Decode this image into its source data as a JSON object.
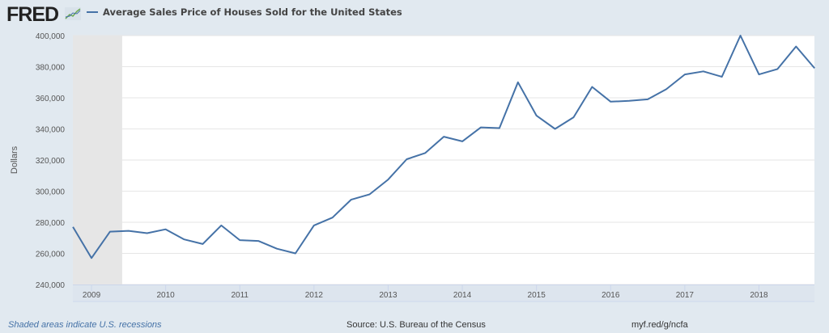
{
  "header": {
    "logo": "FRED",
    "logo_icon": "line-chart-icon"
  },
  "footer": {
    "recession_note": "Shaded areas indicate U.S. recessions",
    "source": "Source: U.S. Bureau of the Census",
    "link": "myf.red/g/ncfa"
  },
  "chart_data": {
    "type": "line",
    "title": "",
    "legend": [
      "Average Sales Price of Houses Sold for the United States"
    ],
    "legend_placement": "top-left",
    "xlabel": "",
    "ylabel": "Dollars",
    "ylim": [
      240000,
      400000
    ],
    "yticks": [
      "240,000",
      "260,000",
      "280,000",
      "300,000",
      "320,000",
      "340,000",
      "360,000",
      "380,000",
      "400,000"
    ],
    "ytick_values": [
      240000,
      260000,
      280000,
      300000,
      320000,
      340000,
      360000,
      380000,
      400000
    ],
    "xticks": [
      "2009",
      "2010",
      "2011",
      "2012",
      "2013",
      "2014",
      "2015",
      "2016",
      "2017",
      "2018"
    ],
    "xlim": [
      "2008-10-01",
      "2018-10-01"
    ],
    "grid": true,
    "colors": {
      "series": "#4572a7",
      "recession": "#e6e6e6",
      "background": "#e1e9f0"
    },
    "recessions": [
      {
        "start": "2008-10-01",
        "end": "2009-06-01"
      }
    ],
    "series": [
      {
        "name": "Average Sales Price of Houses Sold for the United States",
        "x": [
          "2008-Q4",
          "2009-Q1",
          "2009-Q2",
          "2009-Q3",
          "2009-Q4",
          "2010-Q1",
          "2010-Q2",
          "2010-Q3",
          "2010-Q4",
          "2011-Q1",
          "2011-Q2",
          "2011-Q3",
          "2011-Q4",
          "2012-Q1",
          "2012-Q2",
          "2012-Q3",
          "2012-Q4",
          "2013-Q1",
          "2013-Q2",
          "2013-Q3",
          "2013-Q4",
          "2014-Q1",
          "2014-Q2",
          "2014-Q3",
          "2014-Q4",
          "2015-Q1",
          "2015-Q2",
          "2015-Q3",
          "2015-Q4",
          "2016-Q1",
          "2016-Q2",
          "2016-Q3",
          "2016-Q4",
          "2017-Q1",
          "2017-Q2",
          "2017-Q3",
          "2017-Q4",
          "2018-Q1",
          "2018-Q2",
          "2018-Q3",
          "2018-Q4"
        ],
        "values": [
          277000,
          257000,
          274000,
          274500,
          273000,
          275500,
          269000,
          266000,
          278000,
          268500,
          268000,
          263000,
          260000,
          278000,
          283000,
          294500,
          298000,
          307500,
          320500,
          324500,
          335000,
          332000,
          341000,
          340500,
          370000,
          348500,
          340000,
          347500,
          367000,
          357500,
          358000,
          359000,
          365500,
          375000,
          377000,
          373500,
          400000,
          375000,
          378500,
          393000,
          379000
        ]
      }
    ]
  }
}
